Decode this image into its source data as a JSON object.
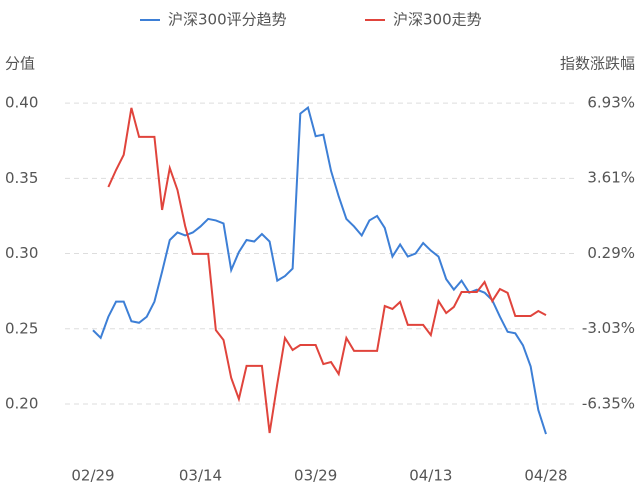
{
  "chart_data": {
    "type": "line",
    "y_label": "分值",
    "y2_label": "指数涨跌幅",
    "categories": [
      "02/29",
      null,
      null,
      null,
      null,
      null,
      null,
      null,
      null,
      null,
      null,
      null,
      null,
      null,
      "03/14",
      null,
      null,
      null,
      null,
      null,
      null,
      null,
      null,
      null,
      null,
      null,
      null,
      null,
      null,
      "03/29",
      null,
      null,
      null,
      null,
      null,
      null,
      null,
      null,
      null,
      null,
      null,
      null,
      null,
      null,
      "04/13",
      null,
      null,
      null,
      null,
      null,
      null,
      null,
      null,
      null,
      null,
      null,
      null,
      null,
      null,
      "04/28"
    ],
    "ylim": [
      0.175,
      0.42
    ],
    "yticks": [
      {
        "value": 0.2,
        "label": "0.20"
      },
      0.25,
      {
        "value": 0.3,
        "label": "0.30"
      },
      0.35,
      {
        "value": 0.4,
        "label": "0.40"
      }
    ],
    "y2lim": [
      -8.01,
      8.25
    ],
    "y2ticks": [
      {
        "value": -6.35,
        "label": "-6.35%"
      },
      {
        "value": -3.03,
        "label": "-3.03%"
      },
      {
        "value": 0.29,
        "label": "0.29%"
      },
      {
        "value": 3.61,
        "label": "3.61%"
      },
      {
        "value": 6.93,
        "label": "6.93%"
      }
    ],
    "grid": true,
    "series": [
      {
        "name": "沪深300评分趋势",
        "color": "#3d7fd6",
        "values": [
          0.249,
          0.244,
          0.258,
          0.268,
          0.268,
          0.255,
          0.254,
          0.258,
          0.268,
          0.288,
          0.309,
          0.314,
          0.312,
          0.314,
          0.318,
          0.323,
          0.322,
          0.32,
          0.289,
          0.301,
          0.309,
          0.308,
          0.313,
          0.308,
          0.282,
          0.285,
          0.29,
          0.393,
          0.397,
          0.378,
          0.379,
          0.355,
          0.338,
          0.323,
          0.318,
          0.312,
          0.322,
          0.325,
          0.317,
          0.298,
          0.306,
          0.298,
          0.3,
          0.307,
          0.302,
          0.298,
          0.283,
          0.276,
          0.282,
          0.274,
          0.276,
          0.274,
          0.269,
          0.258,
          0.248,
          0.247,
          0.239,
          0.225,
          0.196,
          0.18
        ]
      },
      {
        "name": "沪深300走势",
        "color": "#e0443c",
        "axis": "y2",
        "values": [
          null,
          null,
          3.22,
          3.97,
          4.64,
          6.71,
          5.43,
          5.43,
          5.43,
          2.21,
          4.06,
          3.09,
          1.5,
          0.27,
          0.27,
          0.27,
          -3.09,
          -3.53,
          -5.2,
          -6.13,
          -4.67,
          -4.67,
          -4.67,
          -7.63,
          -5.47,
          -3.44,
          -3.97,
          -3.75,
          -3.75,
          -3.75,
          -4.59,
          -4.5,
          -5.03,
          -3.44,
          -4.01,
          -4.01,
          -4.01,
          -4.01,
          -2.03,
          -2.16,
          -1.85,
          -2.86,
          -2.86,
          -2.86,
          -3.31,
          -1.81,
          -2.34,
          -2.07,
          -1.41,
          -1.41,
          -1.41,
          -0.97,
          -1.81,
          -1.28,
          -1.45,
          -2.47,
          -2.47,
          -2.47,
          -2.25,
          -2.43
        ]
      }
    ]
  }
}
